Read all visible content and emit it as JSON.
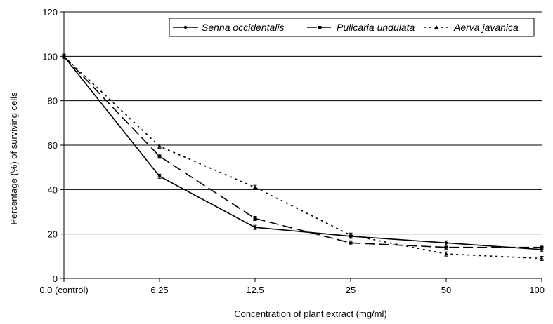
{
  "chart_data": {
    "type": "line",
    "title": "",
    "xlabel": "Concentration of plant extract (mg/ml)",
    "ylabel": "Percentage (%) of surviving cells",
    "categories": [
      "0.0 (control)",
      "6.25",
      "12.5",
      "25",
      "50",
      "100"
    ],
    "ylim": [
      0,
      120
    ],
    "yticks": [
      0,
      20,
      40,
      60,
      80,
      100,
      120
    ],
    "grid": true,
    "legend_position": "top-right",
    "series": [
      {
        "name": "Senna occidentalis",
        "style": "solid",
        "color": "#000000",
        "values": [
          100,
          46,
          23,
          19,
          16,
          13
        ]
      },
      {
        "name": "Pulicaria undulata",
        "style": "dashed",
        "color": "#000000",
        "values": [
          100,
          55,
          27,
          16,
          14,
          14
        ]
      },
      {
        "name": "Aerva javanica",
        "style": "dotted",
        "color": "#000000",
        "values": [
          100,
          59.5,
          41,
          19.5,
          11,
          9
        ]
      }
    ]
  }
}
